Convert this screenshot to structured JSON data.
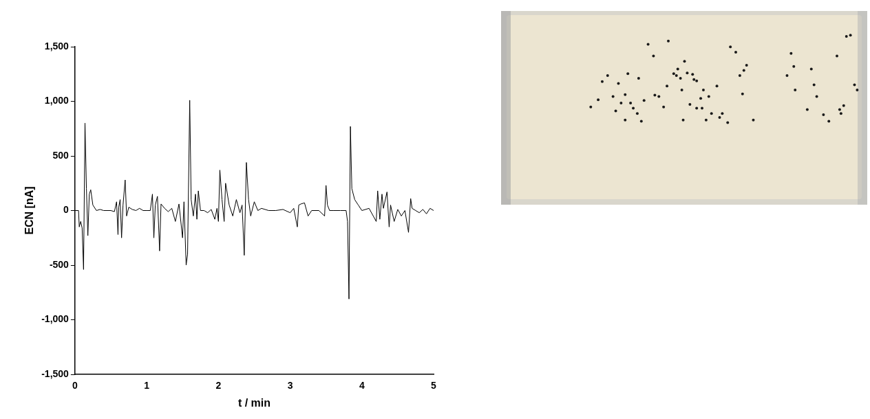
{
  "chart_data": {
    "type": "line",
    "x_label": "t / min",
    "y_label": "ECN [nA]",
    "x": [
      0,
      0.05,
      0.06,
      0.08,
      0.1,
      0.12,
      0.14,
      0.16,
      0.18,
      0.2,
      0.22,
      0.25,
      0.3,
      0.35,
      0.4,
      0.5,
      0.55,
      0.58,
      0.6,
      0.61,
      0.63,
      0.65,
      0.67,
      0.7,
      0.72,
      0.75,
      0.8,
      0.85,
      0.9,
      0.95,
      1.0,
      1.05,
      1.08,
      1.1,
      1.12,
      1.15,
      1.18,
      1.2,
      1.25,
      1.3,
      1.35,
      1.4,
      1.45,
      1.5,
      1.52,
      1.55,
      1.57,
      1.6,
      1.62,
      1.65,
      1.68,
      1.7,
      1.72,
      1.75,
      1.8,
      1.85,
      1.9,
      1.95,
      1.98,
      2.0,
      2.02,
      2.05,
      2.08,
      2.1,
      2.15,
      2.2,
      2.25,
      2.3,
      2.33,
      2.36,
      2.39,
      2.42,
      2.45,
      2.5,
      2.55,
      2.6,
      2.7,
      2.8,
      2.9,
      3.0,
      3.05,
      3.1,
      3.12,
      3.15,
      3.2,
      3.25,
      3.3,
      3.4,
      3.48,
      3.5,
      3.52,
      3.55,
      3.6,
      3.7,
      3.78,
      3.8,
      3.82,
      3.84,
      3.86,
      3.9,
      3.95,
      4.0,
      4.1,
      4.2,
      4.22,
      4.25,
      4.28,
      4.3,
      4.35,
      4.38,
      4.4,
      4.45,
      4.5,
      4.55,
      4.6,
      4.65,
      4.68,
      4.7,
      4.75,
      4.8,
      4.85,
      4.9,
      4.95,
      5.0
    ],
    "values": [
      0,
      0,
      -150,
      -100,
      -160,
      -540,
      800,
      200,
      -230,
      150,
      190,
      50,
      0,
      10,
      0,
      0,
      -10,
      80,
      -220,
      30,
      100,
      -250,
      50,
      280,
      -50,
      30,
      10,
      0,
      20,
      0,
      0,
      0,
      150,
      -250,
      50,
      130,
      -370,
      60,
      20,
      -10,
      20,
      -100,
      60,
      -250,
      80,
      -500,
      -400,
      1010,
      100,
      -50,
      150,
      -80,
      180,
      0,
      0,
      -20,
      10,
      -80,
      20,
      -100,
      370,
      100,
      -100,
      250,
      50,
      -50,
      100,
      -20,
      50,
      -410,
      440,
      100,
      -50,
      80,
      0,
      20,
      0,
      0,
      10,
      -20,
      20,
      -150,
      50,
      60,
      70,
      -50,
      0,
      0,
      -50,
      230,
      50,
      0,
      0,
      0,
      0,
      -100,
      -810,
      770,
      200,
      100,
      50,
      0,
      20,
      -100,
      180,
      -80,
      150,
      20,
      170,
      -150,
      50,
      -100,
      10,
      -50,
      0,
      -200,
      110,
      20,
      0,
      -20,
      10,
      -30,
      20,
      0
    ],
    "color": "#000000",
    "xlim": [
      0,
      5
    ],
    "xticks": [
      0,
      1,
      2,
      3,
      4,
      5
    ],
    "ylim": [
      -1500,
      1500
    ],
    "yticks": [
      -1500,
      -1000,
      -500,
      0,
      500,
      1000,
      1500
    ],
    "grid": false
  }
}
